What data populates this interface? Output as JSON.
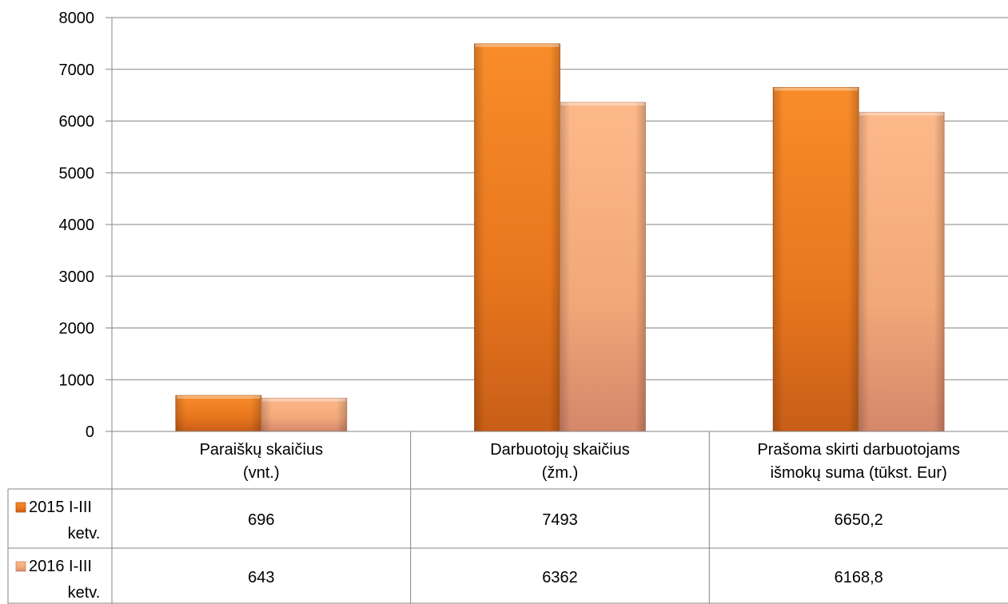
{
  "chart_data": {
    "type": "bar",
    "categories": [
      "Paraiškų skaičius (vnt.)",
      "Darbuotojų skaičius (žm.)",
      "Prašoma skirti darbuotojams išmokų suma (tūkst. Eur)"
    ],
    "category_lines": [
      [
        "Paraiškų skaičius",
        "(vnt.)"
      ],
      [
        "Darbuotojų skaičius",
        "(žm.)"
      ],
      [
        "Prašoma skirti darbuotojams",
        "išmokų suma (tūkst. Eur)"
      ]
    ],
    "series": [
      {
        "name": "2015 I-III ketv.",
        "name_lines": [
          "2015 I-III",
          "ketv."
        ],
        "values": [
          696,
          7493,
          6650.2
        ],
        "labels": [
          "696",
          "7493",
          "6650,2"
        ],
        "color": "#F0801E"
      },
      {
        "name": "2016 I-III ketv.",
        "name_lines": [
          "2016 I-III",
          "ketv."
        ],
        "values": [
          643,
          6362,
          6168.8
        ],
        "labels": [
          "643",
          "6362",
          "6168,8"
        ],
        "color": "#F7B07E"
      }
    ],
    "ylim": [
      0,
      8000
    ],
    "yticks": [
      "0",
      "1000",
      "2000",
      "3000",
      "4000",
      "5000",
      "6000",
      "7000",
      "8000"
    ],
    "grid": true,
    "legend": "data-table"
  }
}
